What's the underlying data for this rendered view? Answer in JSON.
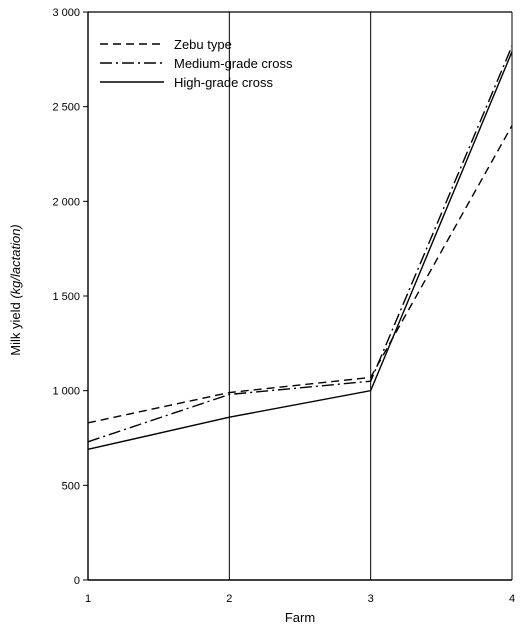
{
  "chart_data": {
    "type": "line",
    "title": "",
    "xlabel": "Farm",
    "ylabel_plain": "Milk yield ",
    "ylabel_italic": "(kg/lactation)",
    "x_ticks": [
      "1",
      "2",
      "3",
      "4"
    ],
    "y_ticks": [
      "0",
      "500",
      "1 000",
      "1 500",
      "2 000",
      "2 500",
      "3 000"
    ],
    "ylim": [
      0,
      3000
    ],
    "legend_position": "top-left",
    "grid": "vertical lines at each farm",
    "x": [
      1,
      2,
      3,
      4
    ],
    "series": [
      {
        "name": "Zebu type",
        "style": "dashed",
        "values": [
          830,
          990,
          1070,
          2400
        ]
      },
      {
        "name": "Medium-grade cross",
        "style": "dashdot",
        "values": [
          730,
          980,
          1050,
          2820
        ]
      },
      {
        "name": "High-grade cross",
        "style": "solid",
        "values": [
          690,
          860,
          1000,
          2790
        ]
      }
    ]
  }
}
